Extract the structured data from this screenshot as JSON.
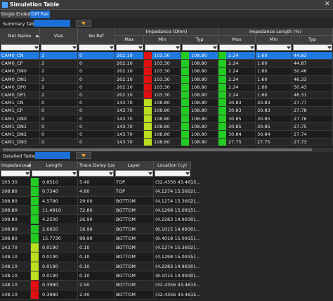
{
  "window": {
    "title": "Simulation Table",
    "tabs": [
      "Single Ended",
      "Diff Pair"
    ]
  },
  "summary": {
    "label": "Summary Table",
    "headers": {
      "net": "Net Name",
      "vias": "Vias",
      "noref": "No Ref",
      "impedance": "Impedance (Ohm)",
      "length": "Impedance Length (%)",
      "max": "Max",
      "min": "Min",
      "typ": "Typ"
    },
    "rows": [
      [
        "CAM0_CN",
        "2",
        "0",
        "202.10",
        "103.30",
        "108.80",
        "2.24",
        "1.60",
        "44.83"
      ],
      [
        "CAM0_CP",
        "2",
        "0",
        "202.10",
        "103.30",
        "108.80",
        "2.24",
        "1.60",
        "44.87"
      ],
      [
        "CAM0_DN0",
        "2",
        "0",
        "202.10",
        "103.30",
        "108.80",
        "2.24",
        "1.60",
        "50.46"
      ],
      [
        "CAM0_DN1",
        "2",
        "0",
        "202.10",
        "103.30",
        "108.80",
        "2.24",
        "1.60",
        "46.33"
      ],
      [
        "CAM0_DP0",
        "2",
        "0",
        "202.10",
        "103.30",
        "108.80",
        "2.24",
        "1.60",
        "50.43"
      ],
      [
        "CAM0_DP1",
        "2",
        "0",
        "202.10",
        "103.30",
        "108.80",
        "2.24",
        "1.60",
        "46.31"
      ],
      [
        "CAM1_CN",
        "0",
        "0",
        "143.70",
        "108.80",
        "108.80",
        "30.83",
        "30.83",
        "27.77"
      ],
      [
        "CAM1_CP",
        "0",
        "0",
        "143.70",
        "108.80",
        "108.80",
        "30.83",
        "30.83",
        "27.78"
      ],
      [
        "CAM1_DN0",
        "0",
        "0",
        "143.70",
        "108.80",
        "108.80",
        "30.85",
        "30.85",
        "27.76"
      ],
      [
        "CAM1_DN1",
        "0",
        "0",
        "143.70",
        "108.80",
        "108.80",
        "30.85",
        "30.85",
        "27.75"
      ],
      [
        "CAM1_DN2",
        "0",
        "0",
        "143.70",
        "108.80",
        "108.80",
        "30.84",
        "30.84",
        "27.74"
      ],
      [
        "CAM1_DN3",
        "0",
        "0",
        "143.70",
        "108.80",
        "108.80",
        "27.75",
        "27.75",
        "27.73"
      ]
    ],
    "bar_colors": [
      [
        "#e01010",
        "#22cc22",
        "#22cc22"
      ],
      [
        "#e01010",
        "#22cc22",
        "#22cc22"
      ],
      [
        "#e01010",
        "#22cc22",
        "#22cc22"
      ],
      [
        "#e01010",
        "#22cc22",
        "#22cc22"
      ],
      [
        "#e01010",
        "#22cc22",
        "#22cc22"
      ],
      [
        "#e01010",
        "#22cc22",
        "#22cc22"
      ],
      [
        "#b8e020",
        "#22cc22",
        "#22cc22"
      ],
      [
        "#b8e020",
        "#22cc22",
        "#22cc22"
      ],
      [
        "#b8e020",
        "#22cc22",
        "#22cc22"
      ],
      [
        "#b8e020",
        "#22cc22",
        "#22cc22"
      ],
      [
        "#b8e020",
        "#22cc22",
        "#22cc22"
      ],
      [
        "#b8e020",
        "#22cc22",
        "#22cc22"
      ]
    ]
  },
  "detail": {
    "label": "Detailed Table",
    "headers": [
      "Impedance (Ohm)",
      "Length",
      "Trace Delay (ps)",
      "Layer",
      "Location (cy)"
    ],
    "rows": [
      [
        "103.30",
        "0.8510",
        "5.40",
        "TOP",
        "(32.4356 43.4615..."
      ],
      [
        "108.80",
        "0.7340",
        "4.60",
        "TOP",
        "(4.1274 15.5602)..."
      ],
      [
        "108.80",
        "4.5790",
        "29.00",
        "BOTTOM",
        "(4.1274 15.3602)..."
      ],
      [
        "108.80",
        "11.4910",
        "72.80",
        "BOTTOM",
        "(4.1298 15.0915)..."
      ],
      [
        "108.80",
        "4.2500",
        "26.90",
        "BOTTOM",
        "(4.2283 14.9930)..."
      ],
      [
        "108.80",
        "2.6650",
        "16.90",
        "BOTTOM",
        "(8.1015 14.9930)..."
      ],
      [
        "108.80",
        "15.7730",
        "99.90",
        "BOTTOM",
        "(9.4018 15.0915)..."
      ],
      [
        "143.70",
        "0.0190",
        "0.10",
        "BOTTOM",
        "(4.1274 15.3602)..."
      ],
      [
        "148.10",
        "0.0190",
        "0.10",
        "BOTTOM",
        "(4.1298 15.0915)..."
      ],
      [
        "148.10",
        "0.0190",
        "0.10",
        "BOTTOM",
        "(4.2283 14.9930)..."
      ],
      [
        "148.10",
        "0.0190",
        "0.10",
        "BOTTOM",
        "(8.1015 14.9930)..."
      ],
      [
        "148.10",
        "0.3980",
        "2.50",
        "BOTTOM",
        "(32.4356 43.4615..."
      ],
      [
        "148.10",
        "0.3980",
        "2.40",
        "BOTTOM",
        "(32.4356 43.4615..."
      ]
    ],
    "bar_colors": [
      "#22cc22",
      "#22cc22",
      "#22cc22",
      "#22cc22",
      "#22cc22",
      "#22cc22",
      "#22cc22",
      "#b8e020",
      "#b8e020",
      "#b8e020",
      "#b8e020",
      "#e01010",
      "#e01010"
    ]
  }
}
